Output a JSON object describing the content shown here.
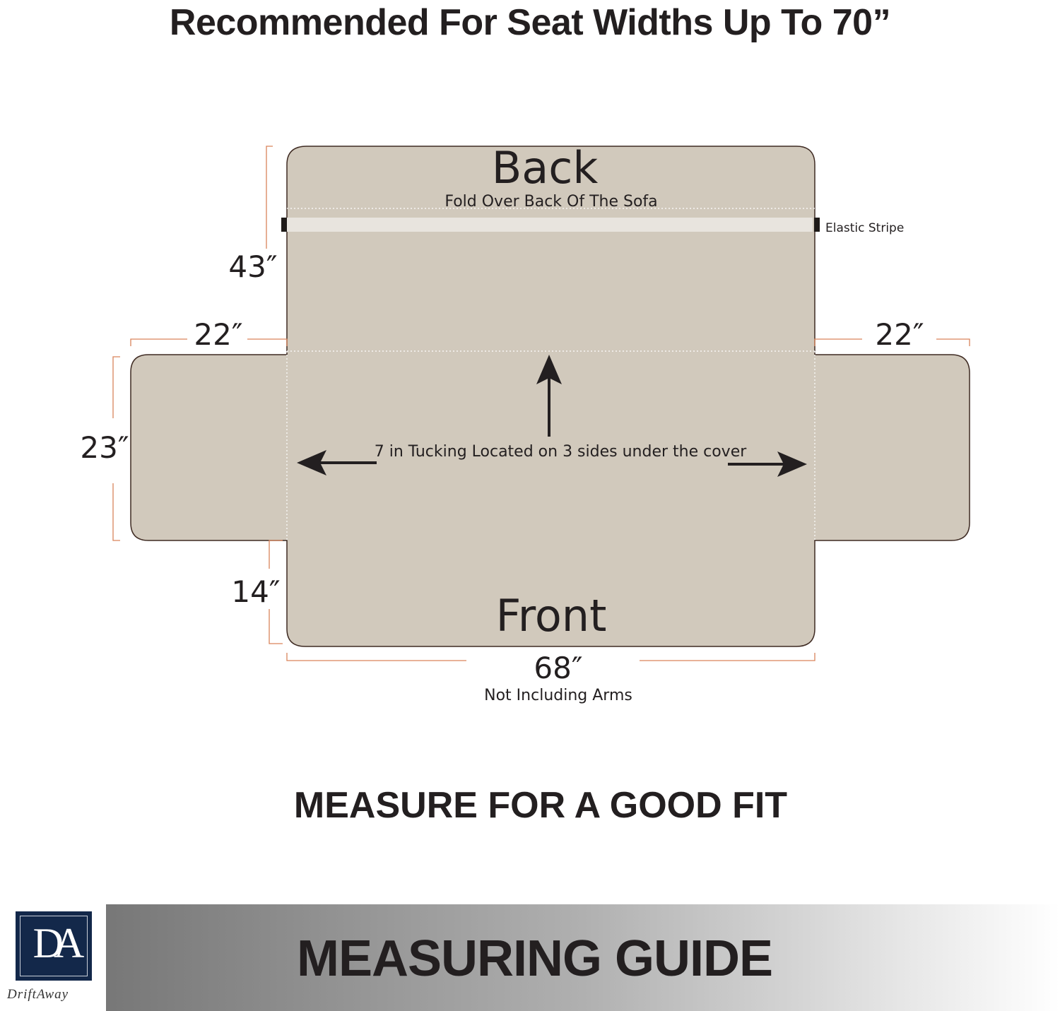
{
  "heading": "Recommended For Seat Widths Up To 70”",
  "diagram": {
    "back_label": "Back",
    "fold_label": "Fold Over Back Of The Sofa",
    "elastic_label": "Elastic Stripe",
    "front_label": "Front",
    "tucking_label": "7 in  Tucking Located on  3 sides under the cover",
    "dimensions": {
      "back_height": "43″",
      "left_arm_width": "22″",
      "right_arm_width": "22″",
      "arm_height": "23″",
      "front_height": "14″",
      "seat_width": "68″",
      "seat_width_note": "Not Including Arms"
    }
  },
  "subheading": "MEASURE FOR A GOOD FIT",
  "footer": {
    "title": "MEASURING GUIDE",
    "logo_monogram": "DA",
    "logo_name": "DriftAway"
  },
  "colors": {
    "fabric": "#d1c9bc",
    "outline": "#3e2a22",
    "dimension_line": "#d9845a",
    "text": "#231f20"
  }
}
